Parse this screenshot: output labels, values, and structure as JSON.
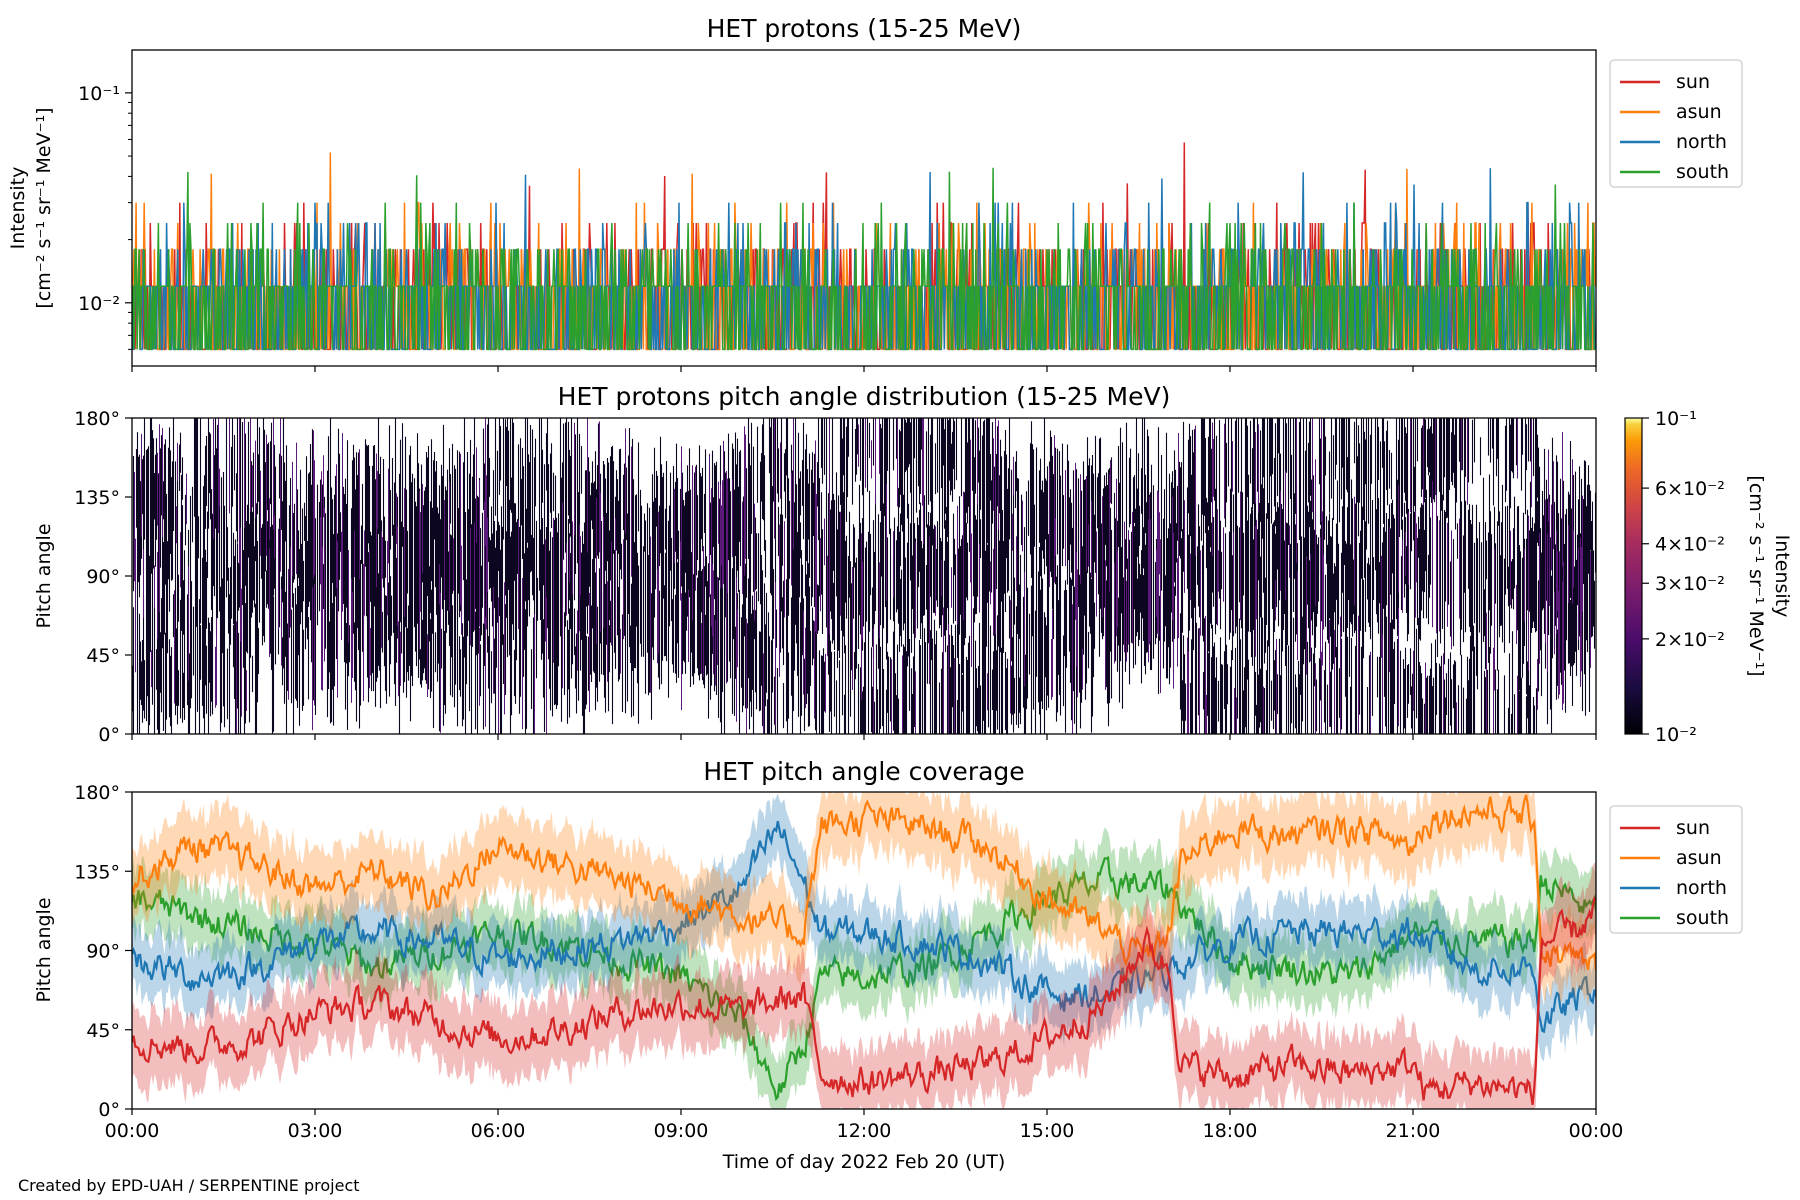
{
  "figure": {
    "footer": "Created by EPD-UAH / SERPENTINE project",
    "xlabel": "Time of day 2022 Feb 20 (UT)"
  },
  "legend": [
    {
      "name": "sun",
      "color": "#d62728"
    },
    {
      "name": "asun",
      "color": "#ff7f0e"
    },
    {
      "name": "north",
      "color": "#1f77b4"
    },
    {
      "name": "south",
      "color": "#2ca02c"
    }
  ],
  "chart_data": [
    {
      "type": "line",
      "title": "HET protons (15-25 MeV)",
      "ylabel": [
        "Intensity",
        "[cm⁻² s⁻¹ sr⁻¹ MeV⁻¹]"
      ],
      "yscale": "log",
      "ylim": [
        0.005,
        0.16
      ],
      "yticks": [
        {
          "value": 0.1,
          "label": "10⁻¹"
        },
        {
          "value": 0.01,
          "label": "10⁻²"
        }
      ],
      "xlim_hours": [
        0,
        24
      ],
      "x_unit": "hours since 2022-02-20 00:00 UT",
      "legend_position": "outside right",
      "series": [
        {
          "name": "sun",
          "color": "#d62728",
          "baseline": 0.012,
          "low": 0.006,
          "band_high": 0.018,
          "peak_max": 0.058,
          "peak_time": "17:15",
          "samples_per_hour": 60
        },
        {
          "name": "asun",
          "color": "#ff7f0e",
          "baseline": 0.012,
          "low": 0.006,
          "band_high": 0.018,
          "peak_max": 0.052,
          "peak_time": "03:15",
          "samples_per_hour": 60
        },
        {
          "name": "north",
          "color": "#1f77b4",
          "baseline": 0.012,
          "low": 0.006,
          "band_high": 0.018,
          "peak_max": 0.042,
          "peak_time": "13:05",
          "samples_per_hour": 60
        },
        {
          "name": "south",
          "color": "#2ca02c",
          "baseline": 0.012,
          "low": 0.006,
          "band_high": 0.018,
          "peak_max": 0.042,
          "peak_time": "00:55",
          "samples_per_hour": 60
        }
      ]
    },
    {
      "type": "heatmap",
      "title": "HET protons pitch angle distribution (15-25 MeV)",
      "ylabel": "Pitch angle",
      "ylim": [
        0,
        180
      ],
      "yticks": [
        "0°",
        "45°",
        "90°",
        "135°",
        "180°"
      ],
      "xlim_hours": [
        0,
        24
      ],
      "colorbar": {
        "label": [
          "Intensity",
          "[cm⁻² s⁻¹ sr⁻¹ MeV⁻¹]"
        ],
        "scale": "log",
        "range": [
          0.01,
          0.1
        ],
        "cmap": "inferno",
        "ticks": [
          {
            "value": 0.1,
            "label": "10⁻¹"
          },
          {
            "value": 0.06,
            "label": "6×10⁻²"
          },
          {
            "value": 0.04,
            "label": "4×10⁻²"
          },
          {
            "value": 0.03,
            "label": "3×10⁻²"
          },
          {
            "value": 0.02,
            "label": "2×10⁻²"
          },
          {
            "value": 0.01,
            "label": "10⁻²"
          }
        ]
      },
      "typical_intensity": 0.012
    },
    {
      "type": "line",
      "title": "HET pitch angle coverage",
      "ylabel": "Pitch angle",
      "ylim": [
        0,
        180
      ],
      "yticks": [
        "0°",
        "45°",
        "90°",
        "135°",
        "180°"
      ],
      "xlim_hours": [
        0,
        24
      ],
      "legend_position": "outside right",
      "band": "shaded min/max pitch-angle range per telescope",
      "series": [
        {
          "name": "sun",
          "color": "#d62728",
          "t": [
            0,
            1,
            2,
            3,
            4,
            5,
            6,
            7,
            8,
            9,
            10,
            11,
            11.3,
            12,
            13,
            14,
            15,
            16,
            16.6,
            17,
            17.2,
            18,
            19,
            20,
            21,
            21.2,
            22,
            23,
            23.1,
            23.6,
            24
          ],
          "pa": [
            40,
            35,
            40,
            55,
            60,
            50,
            40,
            45,
            55,
            60,
            55,
            65,
            20,
            15,
            20,
            25,
            40,
            60,
            95,
            80,
            25,
            18,
            25,
            20,
            25,
            10,
            15,
            10,
            95,
            100,
            110
          ],
          "halfwidth": 20
        },
        {
          "name": "asun",
          "color": "#ff7f0e",
          "t": [
            0,
            1,
            2,
            3,
            4,
            5,
            6,
            7,
            8,
            9,
            10,
            11,
            11.3,
            12,
            13,
            14,
            15,
            16,
            16.6,
            17,
            17.2,
            18,
            19,
            20,
            21,
            21.2,
            22,
            23,
            23.1,
            23.6,
            24
          ],
          "pa": [
            130,
            150,
            140,
            125,
            135,
            120,
            150,
            140,
            130,
            120,
            110,
            100,
            160,
            165,
            160,
            150,
            120,
            100,
            85,
            100,
            140,
            160,
            155,
            160,
            150,
            165,
            170,
            165,
            90,
            85,
            80
          ],
          "halfwidth": 20
        },
        {
          "name": "north",
          "color": "#1f77b4",
          "t": [
            0,
            1,
            2,
            3,
            4,
            5,
            6,
            7,
            8,
            9,
            10,
            10.6,
            11,
            11.3,
            12,
            13,
            14,
            15,
            16,
            17,
            18,
            19,
            20,
            21,
            22,
            23,
            23.1,
            23.6,
            24
          ],
          "pa": [
            85,
            75,
            80,
            95,
            100,
            95,
            85,
            90,
            95,
            105,
            125,
            160,
            130,
            100,
            100,
            95,
            85,
            65,
            65,
            80,
            95,
            100,
            100,
            100,
            80,
            80,
            50,
            60,
            70
          ],
          "halfwidth": 18
        },
        {
          "name": "south",
          "color": "#2ca02c",
          "t": [
            0,
            1,
            2,
            3,
            4,
            5,
            6,
            7,
            8,
            9,
            10,
            10.6,
            11,
            11.3,
            12,
            13,
            14,
            15,
            16,
            17,
            18,
            19,
            20,
            21,
            22,
            23,
            23.1,
            23.6,
            24
          ],
          "pa": [
            120,
            110,
            100,
            95,
            80,
            90,
            100,
            95,
            85,
            75,
            50,
            10,
            35,
            75,
            75,
            80,
            100,
            120,
            130,
            125,
            85,
            80,
            75,
            100,
            95,
            95,
            130,
            120,
            110
          ],
          "halfwidth": 18
        }
      ]
    }
  ],
  "xticks": [
    "00:00",
    "03:00",
    "06:00",
    "09:00",
    "12:00",
    "15:00",
    "18:00",
    "21:00",
    "00:00"
  ]
}
